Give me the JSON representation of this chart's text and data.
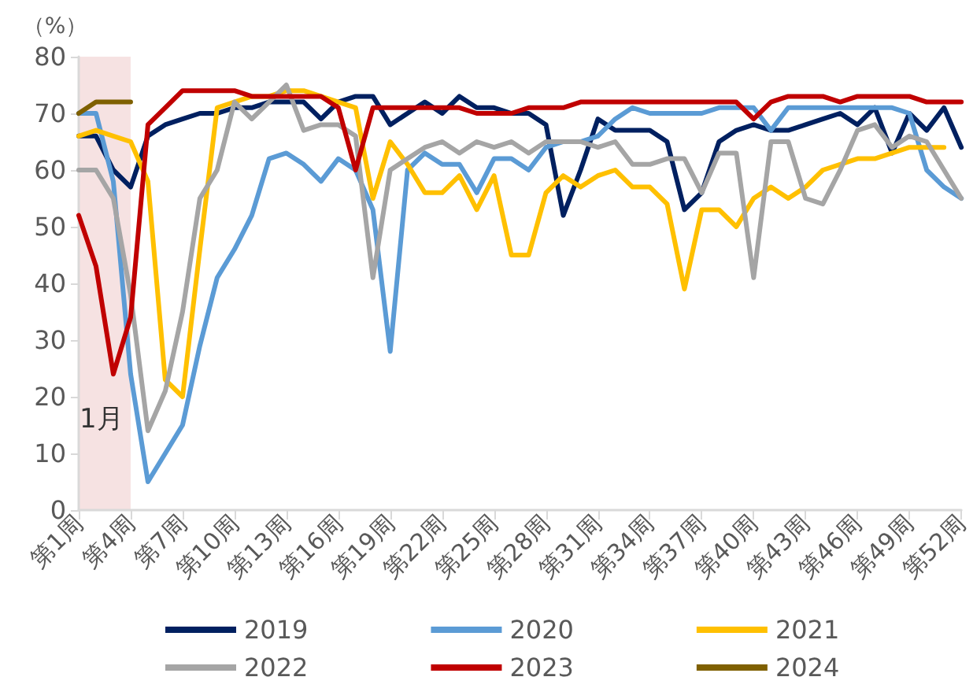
{
  "chart_data": {
    "type": "line",
    "ylabel": "（%）",
    "categories": [
      "第1周",
      null,
      null,
      "第4周",
      null,
      null,
      "第7周",
      null,
      null,
      "第10周",
      null,
      null,
      "第13周",
      null,
      null,
      "第16周",
      null,
      null,
      "第19周",
      null,
      null,
      "第22周",
      null,
      null,
      "第25周",
      null,
      null,
      "第28周",
      null,
      null,
      "第31周",
      null,
      null,
      "第34周",
      null,
      null,
      "第37周",
      null,
      null,
      "第40周",
      null,
      null,
      "第43周",
      null,
      null,
      "第46周",
      null,
      null,
      "第49周",
      null,
      null,
      "第52周"
    ],
    "ylim": [
      0,
      80
    ],
    "yticks": [
      0,
      10,
      20,
      30,
      40,
      50,
      60,
      70,
      80
    ],
    "grid": false,
    "legend": "bottom",
    "marker": "none",
    "line_style": "solid",
    "bands": [
      {
        "axis": "x",
        "from": "第1周",
        "to": "第4周",
        "label": "1月",
        "color": "#f6e2e2"
      }
    ],
    "series": [
      {
        "name": "2019",
        "color": "#002060",
        "values": [
          66,
          66,
          60,
          57,
          66,
          68,
          69,
          70,
          70,
          71,
          71,
          72,
          72,
          72,
          69,
          72,
          73,
          73,
          68,
          70,
          72,
          70,
          73,
          71,
          71,
          70,
          70,
          68,
          52,
          60,
          69,
          67,
          67,
          67,
          65,
          53,
          56,
          65,
          67,
          68,
          67,
          67,
          68,
          69,
          70,
          68,
          71,
          63,
          70,
          67,
          71,
          64
        ]
      },
      {
        "name": "2020",
        "color": "#5b9bd5",
        "values": [
          70,
          70,
          58,
          24,
          5,
          10,
          15,
          29,
          41,
          46,
          52,
          62,
          63,
          61,
          58,
          62,
          60,
          53,
          28,
          60,
          63,
          61,
          61,
          56,
          62,
          62,
          60,
          64,
          65,
          65,
          66,
          69,
          71,
          70,
          70,
          70,
          70,
          71,
          71,
          71,
          67,
          71,
          71,
          71,
          71,
          71,
          71,
          71,
          70,
          60,
          57,
          55
        ]
      },
      {
        "name": "2021",
        "color": "#ffc000",
        "values": [
          66,
          67,
          66,
          65,
          58,
          23,
          20,
          46,
          71,
          72,
          73,
          73,
          74,
          74,
          73,
          72,
          71,
          55,
          65,
          61,
          56,
          56,
          59,
          53,
          59,
          45,
          45,
          56,
          59,
          57,
          59,
          60,
          57,
          57,
          54,
          39,
          53,
          53,
          50,
          55,
          57,
          55,
          57,
          60,
          61,
          62,
          62,
          63,
          64,
          64,
          64,
          null
        ]
      },
      {
        "name": "2022",
        "color": "#a5a5a5",
        "values": [
          60,
          60,
          55,
          38,
          14,
          21,
          35,
          55,
          60,
          72,
          69,
          72,
          75,
          67,
          68,
          68,
          66,
          41,
          60,
          62,
          64,
          65,
          63,
          65,
          64,
          65,
          63,
          65,
          65,
          65,
          64,
          65,
          61,
          61,
          62,
          62,
          56,
          63,
          63,
          41,
          65,
          65,
          55,
          54,
          60,
          67,
          68,
          64,
          66,
          65,
          60,
          55
        ]
      },
      {
        "name": "2023",
        "color": "#c00000",
        "values": [
          52,
          43,
          24,
          34,
          68,
          71,
          74,
          74,
          74,
          74,
          73,
          73,
          73,
          73,
          73,
          71,
          60,
          71,
          71,
          71,
          71,
          71,
          71,
          70,
          70,
          70,
          71,
          71,
          71,
          72,
          72,
          72,
          72,
          72,
          72,
          72,
          72,
          72,
          72,
          69,
          72,
          73,
          73,
          73,
          72,
          73,
          73,
          73,
          73,
          72,
          72,
          72
        ]
      },
      {
        "name": "2024",
        "color": "#7f6000",
        "values": [
          70,
          72,
          72,
          72,
          null,
          null,
          null,
          null,
          null,
          null,
          null,
          null,
          null,
          null,
          null,
          null,
          null,
          null,
          null,
          null,
          null,
          null,
          null,
          null,
          null,
          null,
          null,
          null,
          null,
          null,
          null,
          null,
          null,
          null,
          null,
          null,
          null,
          null,
          null,
          null,
          null,
          null,
          null,
          null,
          null,
          null,
          null,
          null,
          null,
          null,
          null,
          null
        ]
      }
    ]
  }
}
